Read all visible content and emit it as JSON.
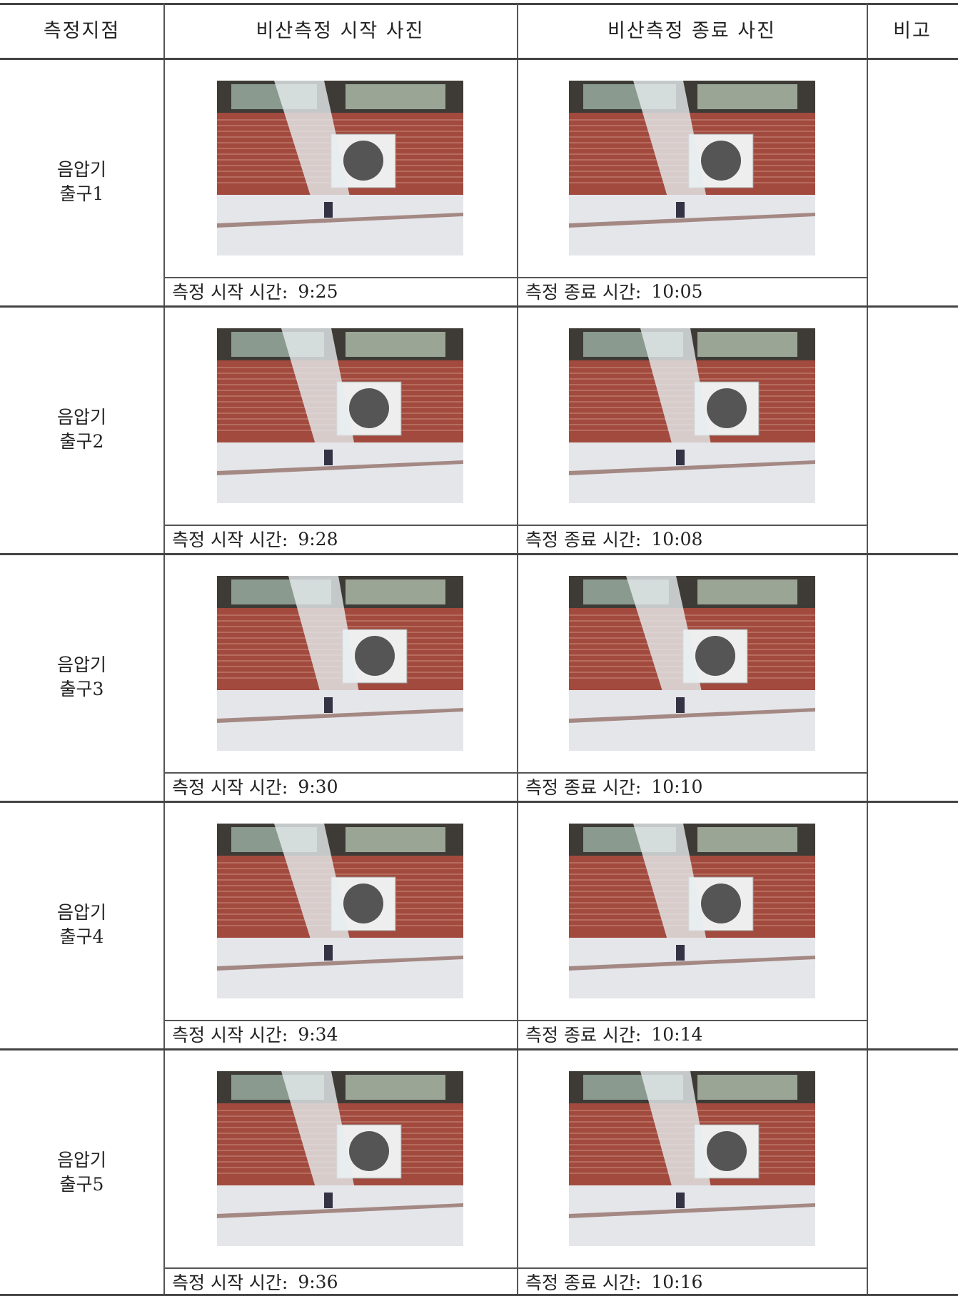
{
  "table": {
    "header": [
      "측정지점",
      "비산측정 시작 사진",
      "비산측정 종료 사진",
      "비고"
    ],
    "rows": [
      {
        "location": [
          "음압기",
          "출구1"
        ],
        "start_label": "측정 시작 시간:",
        "start_time": "9:25",
        "end_label": "측정 종료 시간:",
        "end_time": "10:05"
      },
      {
        "location": [
          "음압기",
          "출구2"
        ],
        "start_label": "측정 시작 시간:",
        "start_time": "9:28",
        "end_label": "측정 종료 시간:",
        "end_time": "10:08"
      },
      {
        "location": [
          "음압기",
          "출구3"
        ],
        "start_label": "측정 시작 시간:",
        "start_time": "9:30",
        "end_label": "측정 종료 시간:",
        "end_time": "10:10"
      },
      {
        "location": [
          "음압기",
          "출구4"
        ],
        "start_label": "측정 시작 시간:",
        "start_time": "9:34",
        "end_label": "측정 종료 시간:",
        "end_time": "10:14"
      },
      {
        "location": [
          "음압기",
          "출구5"
        ],
        "start_label": "측정 시작 시간:",
        "start_time": "9:36",
        "end_label": "측정 종료 시간:",
        "end_time": "10:16"
      }
    ]
  }
}
